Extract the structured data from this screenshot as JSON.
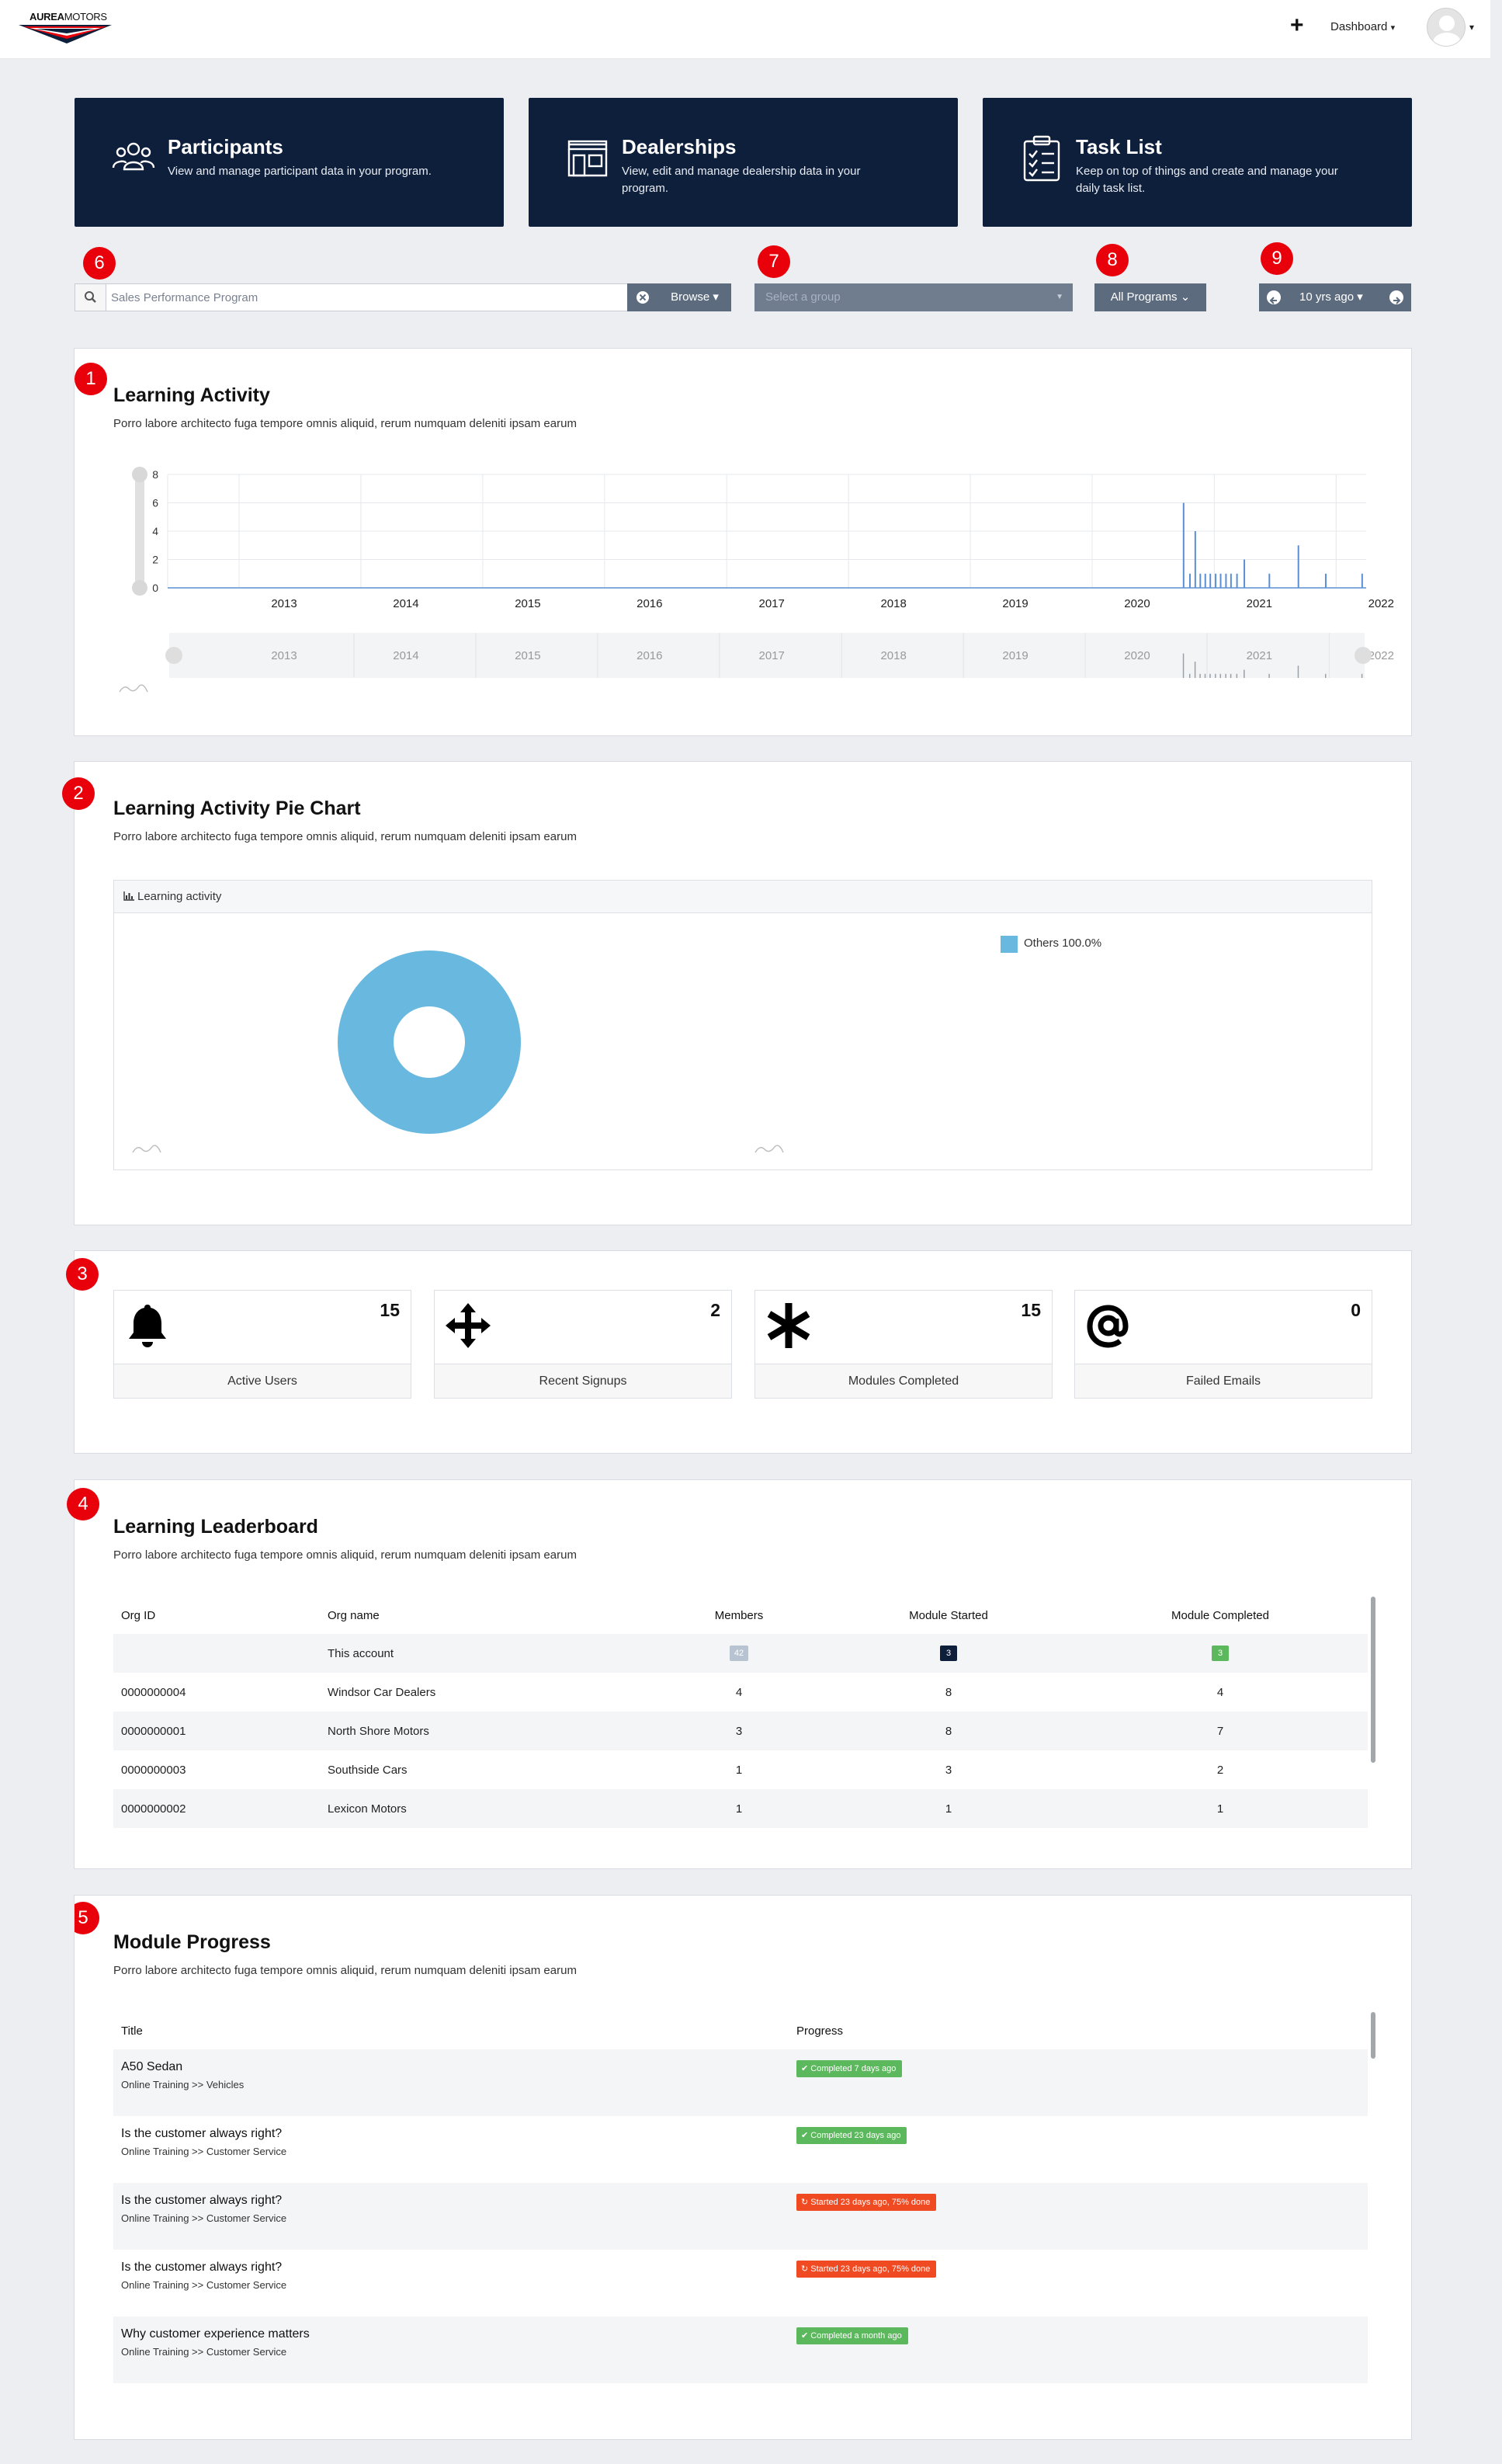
{
  "app": {
    "logo_bold": "AUREA",
    "logo_light": "MOTORS",
    "nav_plus": "+",
    "nav_dashboard": "Dashboard",
    "caret": "⌄"
  },
  "nav_cards": [
    {
      "title": "Participants",
      "desc": "View and manage participant data in your program.",
      "icon": "people-icon"
    },
    {
      "title": "Dealerships",
      "desc": "View, edit and manage dealership data in your program.",
      "icon": "storefront-icon"
    },
    {
      "title": "Task List",
      "desc": "Keep on top of things and create and manage your daily task list.",
      "icon": "clipboard-checklist-icon"
    }
  ],
  "callouts": [
    "1",
    "2",
    "3",
    "4",
    "5",
    "6",
    "7",
    "8",
    "9"
  ],
  "filters": {
    "search_value": "Sales Performance Program",
    "browse_label": "Browse ▾",
    "group_placeholder": "Select a group",
    "programs_label": "All Programs ⌄",
    "date_label": "10 yrs ago ▾"
  },
  "learning_activity": {
    "title": "Learning Activity",
    "desc": "Porro labore architecto fuga tempore omnis aliquid, rerum numquam deleniti ipsam earum"
  },
  "chart_data": {
    "type": "bar",
    "title": "",
    "xlabel": "",
    "ylabel": "",
    "ylim": [
      0,
      8
    ],
    "yticks": [
      "0",
      "2",
      "4",
      "6",
      "8"
    ],
    "x_ticks": [
      "2013",
      "2014",
      "2015",
      "2016",
      "2017",
      "2018",
      "2019",
      "2020",
      "2021",
      "2022"
    ],
    "x_range": [
      "2012-06",
      "2022-04"
    ],
    "series": [
      {
        "x": [
          "2020-10-01",
          "2020-10-20",
          "2020-11-05",
          "2020-11-20",
          "2020-12-05",
          "2020-12-20",
          "2021-01-05",
          "2021-01-20",
          "2021-02-05",
          "2021-02-20",
          "2021-03-10",
          "2021-04-01",
          "2021-06-15",
          "2021-09-10",
          "2021-12-01",
          "2022-03-20"
        ],
        "values": [
          6,
          1,
          4,
          1,
          1,
          1,
          1,
          1,
          1,
          1,
          1,
          2,
          1,
          3,
          1,
          1
        ]
      }
    ],
    "grid": true,
    "color": "#5b8fd4"
  },
  "pie_chart": {
    "title": "Learning Activity Pie Chart",
    "desc": "Porro labore architecto fuga tempore omnis aliquid, rerum numquam deleniti ipsam earum",
    "box_header": "Learning activity",
    "slices": [
      {
        "name": "Others",
        "label": "Others  100.0%",
        "value": 100.0,
        "color": "#68b8e0"
      }
    ]
  },
  "stats": [
    {
      "value": "15",
      "label": "Active Users",
      "icon": "bell-icon"
    },
    {
      "value": "2",
      "label": "Recent Signups",
      "icon": "move-arrows-icon"
    },
    {
      "value": "15",
      "label": "Modules Completed",
      "icon": "asterisk-icon"
    },
    {
      "value": "0",
      "label": "Failed Emails",
      "icon": "at-sign-icon"
    }
  ],
  "leaderboard": {
    "title": "Learning Leaderboard",
    "desc": "Porro labore architecto fuga tempore omnis aliquid, rerum numquam deleniti ipsam earum",
    "headers": [
      "Org ID",
      "Org name",
      "Members",
      "Module Started",
      "Module Completed"
    ],
    "account_row": {
      "org_id": "",
      "org_name": "This account",
      "members": "42",
      "started": "3",
      "completed": "3"
    },
    "rows": [
      {
        "org_id": "0000000004",
        "org_name": "Windsor Car Dealers",
        "members": "4",
        "started": "8",
        "completed": "4"
      },
      {
        "org_id": "0000000001",
        "org_name": "North Shore Motors",
        "members": "3",
        "started": "8",
        "completed": "7"
      },
      {
        "org_id": "0000000003",
        "org_name": "Southside Cars",
        "members": "1",
        "started": "3",
        "completed": "2"
      },
      {
        "org_id": "0000000002",
        "org_name": "Lexicon Motors",
        "members": "1",
        "started": "1",
        "completed": "1"
      }
    ],
    "colors": {
      "members": "#b8c3d2",
      "started": "#0e1f3c",
      "completed": "#5cb85c"
    }
  },
  "module_progress": {
    "title": "Module Progress",
    "desc": "Porro labore architecto fuga tempore omnis aliquid, rerum numquam deleniti ipsam earum",
    "headers": [
      "Title",
      "Progress"
    ],
    "rows": [
      {
        "title": "A50 Sedan",
        "path": "Online Training >> Vehicles",
        "status": "Completed 7 days ago",
        "kind": "ok"
      },
      {
        "title": "Is the customer always right?",
        "path": "Online Training >> Customer Service",
        "status": "Completed 23 days ago",
        "kind": "ok"
      },
      {
        "title": "Is the customer always right?",
        "path": "Online Training >> Customer Service",
        "status": "Started 23 days ago, 75% done",
        "kind": "warn"
      },
      {
        "title": "Is the customer always right?",
        "path": "Online Training >> Customer Service",
        "status": "Started 23 days ago, 75% done",
        "kind": "warn"
      },
      {
        "title": "Why customer experience matters",
        "path": "Online Training >> Customer Service",
        "status": "Completed a month ago",
        "kind": "ok"
      }
    ]
  }
}
